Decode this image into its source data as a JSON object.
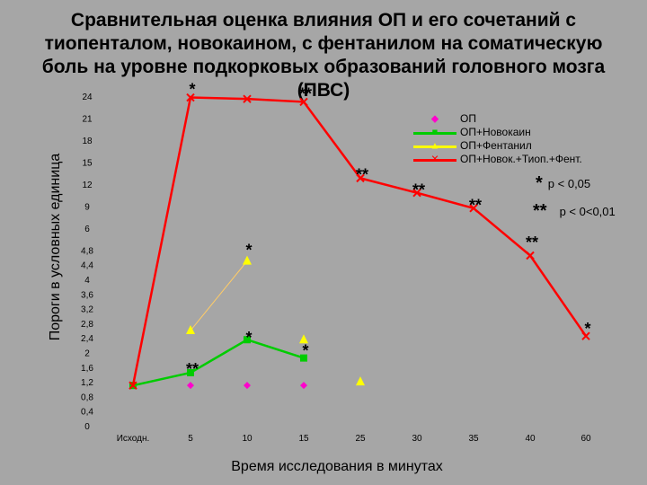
{
  "title": "Сравнительная оценка влияния ОП и его сочетаний с тиопенталом, новокаином, с фентанилом на соматическую боль на уровне подкорковых образований головного мозга (ПВС)",
  "chart_data": {
    "type": "line",
    "xlabel": "Время исследования в минутах",
    "ylabel": "Пороги в условных единица",
    "categories": [
      "Исходн.",
      "5",
      "10",
      "15",
      "25",
      "30",
      "35",
      "40",
      "60"
    ],
    "y_ticks": [
      "0",
      "0,4",
      "0,8",
      "1,2",
      "1,6",
      "2",
      "2,4",
      "2,8",
      "3,2",
      "3,6",
      "4",
      "4,4",
      "4,8",
      "6",
      "9",
      "12",
      "15",
      "18",
      "21",
      "24"
    ],
    "y_axis_note": "non-uniform scale: step 0,4 up to 4,8, then step 3 from 6 to 24",
    "grid": false,
    "legend_position": "top-right",
    "series": [
      {
        "name": "ОП",
        "color": "#ff00cc",
        "marker": "diamond",
        "connected": false,
        "values": [
          1.1,
          1.1,
          1.1,
          1.1,
          null,
          null,
          null,
          null,
          null
        ]
      },
      {
        "name": "ОП+Новокаин",
        "color": "#00cc00",
        "marker": "square",
        "connected": true,
        "values": [
          1.1,
          1.45,
          2.35,
          1.85,
          null,
          null,
          null,
          null,
          null
        ]
      },
      {
        "name": "ОП+Фентанил",
        "color": "#ffff00",
        "marker": "triangle",
        "connected": "partial",
        "values": [
          null,
          2.6,
          4.5,
          2.35,
          1.2,
          null,
          null,
          null,
          null
        ]
      },
      {
        "name": "ОП+Новок.+Тиоп.+Фент.",
        "color": "#ff0000",
        "marker": "x",
        "connected": true,
        "values": [
          1.1,
          23.8,
          23.6,
          23.2,
          12.8,
          10.8,
          8.7,
          4.65,
          2.45
        ]
      }
    ],
    "annotations": [
      {
        "text": "*",
        "x": "5",
        "y": 24.9
      },
      {
        "text": "**",
        "x": "15",
        "y": 24.3
      },
      {
        "text": "**",
        "x": "25",
        "y": 13.3
      },
      {
        "text": "**",
        "x": "30",
        "y": 11.2
      },
      {
        "text": "**",
        "x": "35",
        "y": 9.1
      },
      {
        "text": "**",
        "x": "40",
        "y": 5.2
      },
      {
        "text": "*",
        "x": "60",
        "y": 2.65
      },
      {
        "text": "*",
        "x": "10",
        "y": 4.8
      },
      {
        "text": "*",
        "x": "10",
        "y": 2.4
      },
      {
        "text": "**",
        "x": "5",
        "y": 1.55
      },
      {
        "text": "*",
        "x": "15",
        "y": 2.05
      }
    ],
    "significance": [
      {
        "star": "*",
        "text": "p < 0,05"
      },
      {
        "star": "**",
        "text": "p < 0<0,01"
      }
    ]
  }
}
